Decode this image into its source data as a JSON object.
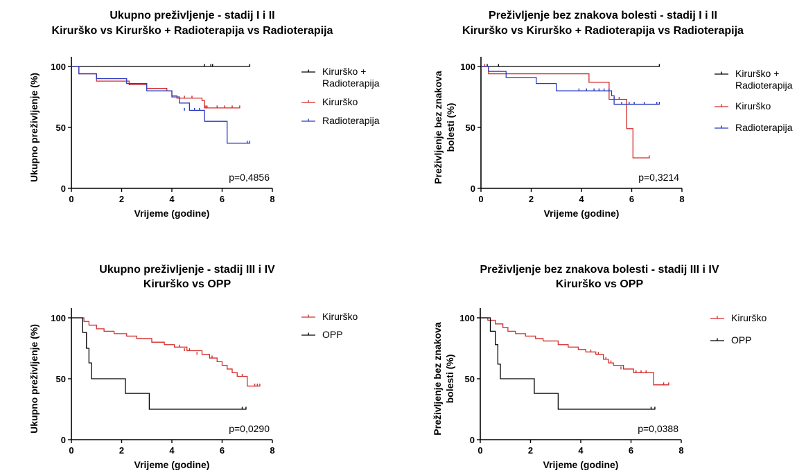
{
  "colors": {
    "black": "#000000",
    "red": "#d42a2a",
    "blue": "#2a3ac0"
  },
  "chart_data": [
    {
      "type": "line",
      "title_line1": "Ukupno preživljenje - stadij  I i  II",
      "title_line2": "Kirurško vs Kirurško + Radioterapija vs Radioterapija",
      "xlabel": "Vrijeme (godine)",
      "ylabel": "Ukupno preživljenje (%)",
      "xlim": [
        0,
        8
      ],
      "ylim": [
        0,
        100
      ],
      "xticks": [
        "0",
        "2",
        "4",
        "6",
        "8"
      ],
      "yticks": [
        "0",
        "50",
        "100"
      ],
      "p_value": "p=0,4856",
      "legend_position": "right",
      "series": [
        {
          "name": "Kirurško +\nRadioterapija",
          "color": "#000000",
          "steps": [
            [
              0,
              100
            ],
            [
              7.1,
              100
            ]
          ],
          "censors": [
            [
              5.3,
              100
            ],
            [
              5.55,
              100
            ],
            [
              5.62,
              100
            ],
            [
              7.1,
              100
            ]
          ]
        },
        {
          "name": "Kirurško",
          "color": "#d42a2a",
          "steps": [
            [
              0,
              100
            ],
            [
              0.3,
              94
            ],
            [
              1.0,
              88
            ],
            [
              2.3,
              85
            ],
            [
              3.0,
              82
            ],
            [
              3.8,
              80
            ],
            [
              4.0,
              76
            ],
            [
              4.2,
              74
            ],
            [
              5.2,
              72
            ],
            [
              5.3,
              66
            ],
            [
              6.7,
              66
            ]
          ],
          "censors": [
            [
              4.5,
              74
            ],
            [
              4.8,
              74
            ],
            [
              5.3,
              66
            ],
            [
              5.35,
              66
            ],
            [
              5.4,
              66
            ],
            [
              5.8,
              66
            ],
            [
              6.1,
              66
            ],
            [
              6.4,
              66
            ],
            [
              6.7,
              66
            ]
          ]
        },
        {
          "name": "Radioterapija",
          "color": "#2a3ac0",
          "steps": [
            [
              0,
              100
            ],
            [
              0.3,
              94
            ],
            [
              1.0,
              90
            ],
            [
              2.2,
              86
            ],
            [
              3.0,
              80
            ],
            [
              4.0,
              75
            ],
            [
              4.3,
              70
            ],
            [
              4.7,
              64
            ],
            [
              5.3,
              55
            ],
            [
              6.2,
              37
            ],
            [
              7.1,
              37
            ]
          ],
          "censors": [
            [
              4.5,
              64
            ],
            [
              4.9,
              64
            ],
            [
              5.1,
              64
            ],
            [
              7.0,
              37
            ],
            [
              7.1,
              37
            ]
          ]
        }
      ]
    },
    {
      "type": "line",
      "title_line1": "Preživljenje bez znakova bolesti - stadij  I i II",
      "title_line2": "Kirurško vs Kirurško + Radioterapija vs Radioterapija",
      "xlabel": "Vrijeme (godine)",
      "ylabel": "Preživljenje bez znakova bolesti (%)",
      "ylabel_line1": "Preživljenje bez znakova",
      "ylabel_line2": "bolesti (%)",
      "xlim": [
        0,
        8
      ],
      "ylim": [
        0,
        100
      ],
      "xticks": [
        "0",
        "2",
        "4",
        "6",
        "8"
      ],
      "yticks": [
        "0",
        "50",
        "100"
      ],
      "p_value": "p=0,3214",
      "legend_position": "right",
      "series": [
        {
          "name": "Kirurško +\nRadioterapija",
          "color": "#000000",
          "steps": [
            [
              0,
              100
            ],
            [
              7.1,
              100
            ]
          ],
          "censors": [
            [
              0.25,
              100
            ],
            [
              0.7,
              100
            ],
            [
              7.1,
              100
            ]
          ]
        },
        {
          "name": "Kirurško",
          "color": "#d42a2a",
          "steps": [
            [
              0,
              100
            ],
            [
              0.3,
              94
            ],
            [
              4.3,
              87
            ],
            [
              5.1,
              73
            ],
            [
              5.8,
              49
            ],
            [
              6.05,
              25
            ],
            [
              6.7,
              25
            ]
          ],
          "censors": [
            [
              0.15,
              100
            ],
            [
              5.3,
              73
            ],
            [
              5.5,
              73
            ],
            [
              6.7,
              25
            ]
          ]
        },
        {
          "name": "Radioterapija",
          "color": "#2a3ac0",
          "steps": [
            [
              0,
              100
            ],
            [
              0.3,
              96
            ],
            [
              1.0,
              91
            ],
            [
              2.2,
              86
            ],
            [
              3.0,
              80
            ],
            [
              5.2,
              76
            ],
            [
              5.3,
              69
            ],
            [
              7.1,
              69
            ]
          ],
          "censors": [
            [
              3.9,
              80
            ],
            [
              4.2,
              80
            ],
            [
              4.5,
              80
            ],
            [
              4.7,
              80
            ],
            [
              4.9,
              80
            ],
            [
              5.1,
              80
            ],
            [
              5.6,
              69
            ],
            [
              5.9,
              69
            ],
            [
              6.1,
              69
            ],
            [
              6.5,
              69
            ],
            [
              7.0,
              69
            ],
            [
              7.1,
              69
            ]
          ]
        }
      ]
    },
    {
      "type": "line",
      "title_line1": "Ukupno preživljenje - stadij III i IV",
      "title_line2": "Kirurško vs OPP",
      "xlabel": "Vrijeme (godine)",
      "ylabel": "Ukupno preživljenje (%)",
      "xlim": [
        0,
        8
      ],
      "ylim": [
        0,
        100
      ],
      "xticks": [
        "0",
        "2",
        "4",
        "6",
        "8"
      ],
      "yticks": [
        "0",
        "50",
        "100"
      ],
      "p_value": "p=0,0290",
      "legend_position": "right",
      "series": [
        {
          "name": "Kirurško",
          "color": "#d42a2a",
          "steps": [
            [
              0,
              100
            ],
            [
              0.5,
              97
            ],
            [
              0.7,
              94
            ],
            [
              1.0,
              91
            ],
            [
              1.3,
              89
            ],
            [
              1.7,
              87
            ],
            [
              2.2,
              85
            ],
            [
              2.6,
              83
            ],
            [
              3.2,
              80
            ],
            [
              3.7,
              78
            ],
            [
              4.1,
              76
            ],
            [
              4.6,
              73
            ],
            [
              5.2,
              70
            ],
            [
              5.5,
              67
            ],
            [
              5.8,
              64
            ],
            [
              6.0,
              61
            ],
            [
              6.2,
              58
            ],
            [
              6.4,
              55
            ],
            [
              6.6,
              52
            ],
            [
              7.0,
              44
            ],
            [
              7.5,
              44
            ]
          ],
          "censors": [
            [
              4.3,
              76
            ],
            [
              4.5,
              73
            ],
            [
              4.7,
              73
            ],
            [
              5.0,
              70
            ],
            [
              5.6,
              67
            ],
            [
              6.8,
              52
            ],
            [
              7.3,
              44
            ],
            [
              7.4,
              44
            ],
            [
              7.5,
              44
            ]
          ]
        },
        {
          "name": "OPP",
          "color": "#000000",
          "steps": [
            [
              0,
              100
            ],
            [
              0.45,
              88
            ],
            [
              0.6,
              75
            ],
            [
              0.7,
              63
            ],
            [
              0.8,
              50
            ],
            [
              2.15,
              38
            ],
            [
              3.1,
              25
            ],
            [
              6.95,
              25
            ]
          ],
          "censors": [
            [
              6.8,
              25
            ],
            [
              6.95,
              25
            ]
          ]
        }
      ]
    },
    {
      "type": "line",
      "title_line1": "Preživljenje bez znakova bolesti - stadij III i IV",
      "title_line2": "Kirurško vs OPP",
      "xlabel": "Vrijeme (godine)",
      "ylabel": "Preživljenje bez znakova bolesti (%)",
      "ylabel_line1": "Preživljenje bez znakova",
      "ylabel_line2": "bolesti (%)",
      "xlim": [
        0,
        8
      ],
      "ylim": [
        0,
        100
      ],
      "xticks": [
        "0",
        "2",
        "4",
        "6",
        "8"
      ],
      "yticks": [
        "0",
        "50",
        "100"
      ],
      "p_value": "p=0,0388",
      "legend_position": "right",
      "series": [
        {
          "name": "Kirurško",
          "color": "#d42a2a",
          "steps": [
            [
              0,
              100
            ],
            [
              0.3,
              98
            ],
            [
              0.6,
              95
            ],
            [
              0.9,
              92
            ],
            [
              1.1,
              89
            ],
            [
              1.4,
              87
            ],
            [
              1.8,
              85
            ],
            [
              2.2,
              83
            ],
            [
              2.5,
              81
            ],
            [
              3.1,
              78
            ],
            [
              3.5,
              76
            ],
            [
              3.9,
              74
            ],
            [
              4.2,
              72
            ],
            [
              4.6,
              70
            ],
            [
              4.9,
              66
            ],
            [
              5.1,
              63
            ],
            [
              5.3,
              61
            ],
            [
              5.7,
              58
            ],
            [
              6.1,
              55
            ],
            [
              6.9,
              45
            ],
            [
              7.5,
              45
            ]
          ],
          "censors": [
            [
              4.4,
              72
            ],
            [
              4.7,
              70
            ],
            [
              5.0,
              66
            ],
            [
              5.2,
              63
            ],
            [
              5.6,
              58
            ],
            [
              6.2,
              55
            ],
            [
              6.4,
              55
            ],
            [
              6.6,
              55
            ],
            [
              7.3,
              45
            ],
            [
              7.5,
              45
            ]
          ]
        },
        {
          "name": "OPP",
          "color": "#000000",
          "steps": [
            [
              0,
              100
            ],
            [
              0.4,
              89
            ],
            [
              0.6,
              78
            ],
            [
              0.7,
              62
            ],
            [
              0.8,
              50
            ],
            [
              2.15,
              38
            ],
            [
              3.1,
              25
            ],
            [
              6.95,
              25
            ]
          ],
          "censors": [
            [
              6.8,
              25
            ],
            [
              6.95,
              25
            ]
          ]
        }
      ]
    }
  ]
}
